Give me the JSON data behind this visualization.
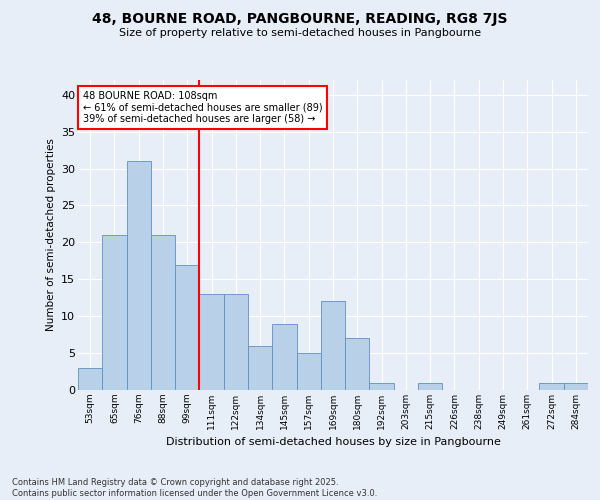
{
  "title1": "48, BOURNE ROAD, PANGBOURNE, READING, RG8 7JS",
  "title2": "Size of property relative to semi-detached houses in Pangbourne",
  "xlabel": "Distribution of semi-detached houses by size in Pangbourne",
  "ylabel": "Number of semi-detached properties",
  "categories": [
    "53sqm",
    "65sqm",
    "76sqm",
    "88sqm",
    "99sqm",
    "111sqm",
    "122sqm",
    "134sqm",
    "145sqm",
    "157sqm",
    "169sqm",
    "180sqm",
    "192sqm",
    "203sqm",
    "215sqm",
    "226sqm",
    "238sqm",
    "249sqm",
    "261sqm",
    "272sqm",
    "284sqm"
  ],
  "values": [
    3,
    21,
    31,
    21,
    17,
    13,
    13,
    6,
    9,
    5,
    12,
    7,
    1,
    0,
    1,
    0,
    0,
    0,
    0,
    1,
    1
  ],
  "bar_color": "#b8d0e8",
  "bar_edge_color": "#6090c0",
  "red_line_index": 5,
  "annotation_title": "48 BOURNE ROAD: 108sqm",
  "annotation_line1": "← 61% of semi-detached houses are smaller (89)",
  "annotation_line2": "39% of semi-detached houses are larger (58) →",
  "ylim": [
    0,
    42
  ],
  "yticks": [
    0,
    5,
    10,
    15,
    20,
    25,
    30,
    35,
    40
  ],
  "footer1": "Contains HM Land Registry data © Crown copyright and database right 2025.",
  "footer2": "Contains public sector information licensed under the Open Government Licence v3.0.",
  "bg_color": "#e8eef8",
  "plot_bg_color": "#e8eef8"
}
